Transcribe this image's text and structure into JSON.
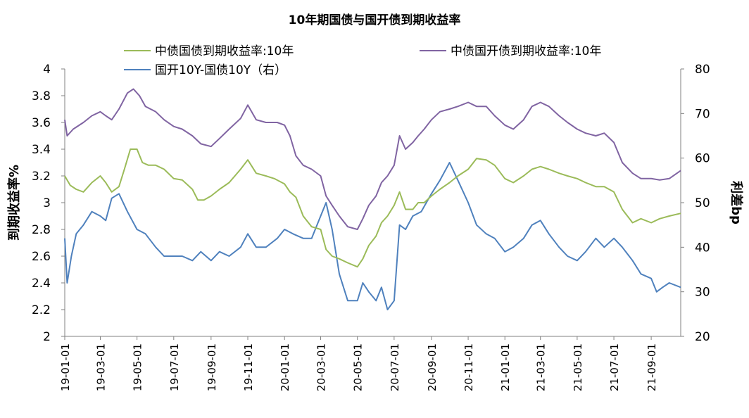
{
  "chart_data": {
    "type": "line",
    "title": "10年期国债与国开债到期收益率",
    "ylabel_left": "到期收益率%",
    "ylabel_right": "利差bp",
    "ylim_left": [
      2,
      4
    ],
    "yticks_left": [
      "2",
      "2.2",
      "2.4",
      "2.6",
      "2.8",
      "3",
      "3.2",
      "3.4",
      "3.6",
      "3.8",
      "4"
    ],
    "ylim_right": [
      20,
      80
    ],
    "yticks_right": [
      "20",
      "30",
      "40",
      "50",
      "60",
      "70",
      "80"
    ],
    "x_domain": [
      "2019-01-01",
      "2021-10-20"
    ],
    "xticks": [
      "19-01-01",
      "19-03-01",
      "19-05-01",
      "19-07-01",
      "19-09-01",
      "19-11-01",
      "20-01-01",
      "20-03-01",
      "20-05-01",
      "20-07-01",
      "20-09-01",
      "20-11-01",
      "21-01-01",
      "21-03-01",
      "21-05-01",
      "21-07-01",
      "21-09-01"
    ],
    "legend_position": "top",
    "grid": false,
    "series": [
      {
        "name": "中债国债到期收益率:10年",
        "axis": "left",
        "color": "#9bbb59",
        "points": [
          [
            "2019-01-01",
            3.2
          ],
          [
            "2019-01-10",
            3.13
          ],
          [
            "2019-01-20",
            3.1
          ],
          [
            "2019-02-01",
            3.08
          ],
          [
            "2019-02-15",
            3.15
          ],
          [
            "2019-03-01",
            3.2
          ],
          [
            "2019-03-10",
            3.15
          ],
          [
            "2019-03-20",
            3.08
          ],
          [
            "2019-04-01",
            3.12
          ],
          [
            "2019-04-10",
            3.25
          ],
          [
            "2019-04-20",
            3.4
          ],
          [
            "2019-05-01",
            3.4
          ],
          [
            "2019-05-10",
            3.3
          ],
          [
            "2019-05-20",
            3.28
          ],
          [
            "2019-06-01",
            3.28
          ],
          [
            "2019-06-15",
            3.25
          ],
          [
            "2019-07-01",
            3.18
          ],
          [
            "2019-07-15",
            3.17
          ],
          [
            "2019-08-01",
            3.1
          ],
          [
            "2019-08-10",
            3.02
          ],
          [
            "2019-08-20",
            3.02
          ],
          [
            "2019-09-01",
            3.05
          ],
          [
            "2019-09-15",
            3.1
          ],
          [
            "2019-10-01",
            3.15
          ],
          [
            "2019-10-20",
            3.25
          ],
          [
            "2019-11-01",
            3.32
          ],
          [
            "2019-11-15",
            3.22
          ],
          [
            "2019-12-01",
            3.2
          ],
          [
            "2019-12-15",
            3.18
          ],
          [
            "2020-01-01",
            3.14
          ],
          [
            "2020-01-10",
            3.08
          ],
          [
            "2020-01-20",
            3.04
          ],
          [
            "2020-02-01",
            2.9
          ],
          [
            "2020-02-15",
            2.82
          ],
          [
            "2020-03-01",
            2.8
          ],
          [
            "2020-03-10",
            2.65
          ],
          [
            "2020-03-20",
            2.6
          ],
          [
            "2020-04-01",
            2.58
          ],
          [
            "2020-04-15",
            2.55
          ],
          [
            "2020-05-01",
            2.52
          ],
          [
            "2020-05-10",
            2.58
          ],
          [
            "2020-05-20",
            2.68
          ],
          [
            "2020-06-01",
            2.75
          ],
          [
            "2020-06-10",
            2.85
          ],
          [
            "2020-06-20",
            2.9
          ],
          [
            "2020-07-01",
            2.98
          ],
          [
            "2020-07-10",
            3.08
          ],
          [
            "2020-07-20",
            2.95
          ],
          [
            "2020-08-01",
            2.95
          ],
          [
            "2020-08-10",
            3.0
          ],
          [
            "2020-08-20",
            3.0
          ],
          [
            "2020-09-01",
            3.05
          ],
          [
            "2020-09-15",
            3.1
          ],
          [
            "2020-10-01",
            3.15
          ],
          [
            "2020-10-15",
            3.2
          ],
          [
            "2020-11-01",
            3.25
          ],
          [
            "2020-11-15",
            3.33
          ],
          [
            "2020-12-01",
            3.32
          ],
          [
            "2020-12-15",
            3.28
          ],
          [
            "2021-01-01",
            3.18
          ],
          [
            "2021-01-15",
            3.15
          ],
          [
            "2021-02-01",
            3.2
          ],
          [
            "2021-02-15",
            3.25
          ],
          [
            "2021-03-01",
            3.27
          ],
          [
            "2021-03-15",
            3.25
          ],
          [
            "2021-04-01",
            3.22
          ],
          [
            "2021-04-15",
            3.2
          ],
          [
            "2021-05-01",
            3.18
          ],
          [
            "2021-05-15",
            3.15
          ],
          [
            "2021-06-01",
            3.12
          ],
          [
            "2021-06-15",
            3.12
          ],
          [
            "2021-07-01",
            3.08
          ],
          [
            "2021-07-15",
            2.95
          ],
          [
            "2021-08-01",
            2.85
          ],
          [
            "2021-08-15",
            2.88
          ],
          [
            "2021-09-01",
            2.85
          ],
          [
            "2021-09-15",
            2.88
          ],
          [
            "2021-10-01",
            2.9
          ],
          [
            "2021-10-20",
            2.92
          ]
        ]
      },
      {
        "name": "中债国开债到期收益率:10年",
        "axis": "left",
        "color": "#8064a2",
        "points": [
          [
            "2019-01-01",
            3.62
          ],
          [
            "2019-01-05",
            3.5
          ],
          [
            "2019-01-15",
            3.55
          ],
          [
            "2019-02-01",
            3.6
          ],
          [
            "2019-02-15",
            3.65
          ],
          [
            "2019-03-01",
            3.68
          ],
          [
            "2019-03-10",
            3.65
          ],
          [
            "2019-03-20",
            3.62
          ],
          [
            "2019-04-01",
            3.7
          ],
          [
            "2019-04-15",
            3.82
          ],
          [
            "2019-04-25",
            3.85
          ],
          [
            "2019-05-05",
            3.8
          ],
          [
            "2019-05-15",
            3.72
          ],
          [
            "2019-06-01",
            3.68
          ],
          [
            "2019-06-15",
            3.62
          ],
          [
            "2019-07-01",
            3.57
          ],
          [
            "2019-07-15",
            3.55
          ],
          [
            "2019-08-01",
            3.5
          ],
          [
            "2019-08-15",
            3.44
          ],
          [
            "2019-09-01",
            3.42
          ],
          [
            "2019-09-15",
            3.48
          ],
          [
            "2019-10-01",
            3.55
          ],
          [
            "2019-10-20",
            3.63
          ],
          [
            "2019-11-01",
            3.73
          ],
          [
            "2019-11-15",
            3.62
          ],
          [
            "2019-12-01",
            3.6
          ],
          [
            "2019-12-20",
            3.6
          ],
          [
            "2020-01-01",
            3.58
          ],
          [
            "2020-01-10",
            3.5
          ],
          [
            "2020-01-20",
            3.35
          ],
          [
            "2020-02-01",
            3.28
          ],
          [
            "2020-02-15",
            3.25
          ],
          [
            "2020-03-01",
            3.2
          ],
          [
            "2020-03-10",
            3.05
          ],
          [
            "2020-03-20",
            2.98
          ],
          [
            "2020-04-01",
            2.9
          ],
          [
            "2020-04-15",
            2.82
          ],
          [
            "2020-05-01",
            2.8
          ],
          [
            "2020-05-10",
            2.88
          ],
          [
            "2020-05-20",
            2.98
          ],
          [
            "2020-06-01",
            3.05
          ],
          [
            "2020-06-10",
            3.15
          ],
          [
            "2020-06-20",
            3.2
          ],
          [
            "2020-07-01",
            3.28
          ],
          [
            "2020-07-10",
            3.5
          ],
          [
            "2020-07-20",
            3.4
          ],
          [
            "2020-08-01",
            3.45
          ],
          [
            "2020-08-10",
            3.5
          ],
          [
            "2020-08-20",
            3.55
          ],
          [
            "2020-09-01",
            3.62
          ],
          [
            "2020-09-15",
            3.68
          ],
          [
            "2020-10-01",
            3.7
          ],
          [
            "2020-10-15",
            3.72
          ],
          [
            "2020-11-01",
            3.75
          ],
          [
            "2020-11-15",
            3.72
          ],
          [
            "2020-12-01",
            3.72
          ],
          [
            "2020-12-15",
            3.65
          ],
          [
            "2021-01-01",
            3.58
          ],
          [
            "2021-01-15",
            3.55
          ],
          [
            "2021-02-01",
            3.62
          ],
          [
            "2021-02-15",
            3.72
          ],
          [
            "2021-03-01",
            3.75
          ],
          [
            "2021-03-15",
            3.72
          ],
          [
            "2021-04-01",
            3.65
          ],
          [
            "2021-04-15",
            3.6
          ],
          [
            "2021-05-01",
            3.55
          ],
          [
            "2021-05-15",
            3.52
          ],
          [
            "2021-06-01",
            3.5
          ],
          [
            "2021-06-15",
            3.52
          ],
          [
            "2021-07-01",
            3.45
          ],
          [
            "2021-07-15",
            3.3
          ],
          [
            "2021-08-01",
            3.22
          ],
          [
            "2021-08-15",
            3.18
          ],
          [
            "2021-09-01",
            3.18
          ],
          [
            "2021-09-15",
            3.17
          ],
          [
            "2021-10-01",
            3.18
          ],
          [
            "2021-10-20",
            3.24
          ]
        ]
      },
      {
        "name": "国开10Y-国债10Y（右）",
        "axis": "right",
        "color": "#4f81bd",
        "points": [
          [
            "2019-01-01",
            42
          ],
          [
            "2019-01-05",
            32
          ],
          [
            "2019-01-12",
            38
          ],
          [
            "2019-01-20",
            43
          ],
          [
            "2019-02-01",
            45
          ],
          [
            "2019-02-15",
            48
          ],
          [
            "2019-03-01",
            47
          ],
          [
            "2019-03-10",
            46
          ],
          [
            "2019-03-20",
            51
          ],
          [
            "2019-04-01",
            52
          ],
          [
            "2019-04-15",
            48
          ],
          [
            "2019-05-01",
            44
          ],
          [
            "2019-05-15",
            43
          ],
          [
            "2019-06-01",
            40
          ],
          [
            "2019-06-15",
            38
          ],
          [
            "2019-07-01",
            38
          ],
          [
            "2019-07-15",
            38
          ],
          [
            "2019-08-01",
            37
          ],
          [
            "2019-08-15",
            39
          ],
          [
            "2019-09-01",
            37
          ],
          [
            "2019-09-15",
            39
          ],
          [
            "2019-10-01",
            38
          ],
          [
            "2019-10-20",
            40
          ],
          [
            "2019-11-01",
            43
          ],
          [
            "2019-11-15",
            40
          ],
          [
            "2019-12-01",
            40
          ],
          [
            "2019-12-20",
            42
          ],
          [
            "2020-01-01",
            44
          ],
          [
            "2020-01-15",
            43
          ],
          [
            "2020-02-01",
            42
          ],
          [
            "2020-02-15",
            42
          ],
          [
            "2020-03-01",
            47
          ],
          [
            "2020-03-10",
            50
          ],
          [
            "2020-03-20",
            44
          ],
          [
            "2020-04-01",
            34
          ],
          [
            "2020-04-15",
            28
          ],
          [
            "2020-05-01",
            28
          ],
          [
            "2020-05-10",
            32
          ],
          [
            "2020-05-20",
            30
          ],
          [
            "2020-06-01",
            28
          ],
          [
            "2020-06-10",
            31
          ],
          [
            "2020-06-20",
            26
          ],
          [
            "2020-07-01",
            28
          ],
          [
            "2020-07-10",
            45
          ],
          [
            "2020-07-20",
            44
          ],
          [
            "2020-08-01",
            47
          ],
          [
            "2020-08-15",
            48
          ],
          [
            "2020-09-01",
            52
          ],
          [
            "2020-09-15",
            55
          ],
          [
            "2020-10-01",
            59
          ],
          [
            "2020-10-15",
            55
          ],
          [
            "2020-11-01",
            50
          ],
          [
            "2020-11-15",
            45
          ],
          [
            "2020-12-01",
            43
          ],
          [
            "2020-12-15",
            42
          ],
          [
            "2021-01-01",
            39
          ],
          [
            "2021-01-15",
            40
          ],
          [
            "2021-02-01",
            42
          ],
          [
            "2021-02-15",
            45
          ],
          [
            "2021-03-01",
            46
          ],
          [
            "2021-03-15",
            43
          ],
          [
            "2021-04-01",
            40
          ],
          [
            "2021-04-15",
            38
          ],
          [
            "2021-05-01",
            37
          ],
          [
            "2021-05-15",
            39
          ],
          [
            "2021-06-01",
            42
          ],
          [
            "2021-06-15",
            40
          ],
          [
            "2021-07-01",
            42
          ],
          [
            "2021-07-15",
            40
          ],
          [
            "2021-08-01",
            37
          ],
          [
            "2021-08-15",
            34
          ],
          [
            "2021-09-01",
            33
          ],
          [
            "2021-09-10",
            30
          ],
          [
            "2021-09-20",
            31
          ],
          [
            "2021-10-01",
            32
          ],
          [
            "2021-10-20",
            31
          ]
        ]
      }
    ]
  }
}
